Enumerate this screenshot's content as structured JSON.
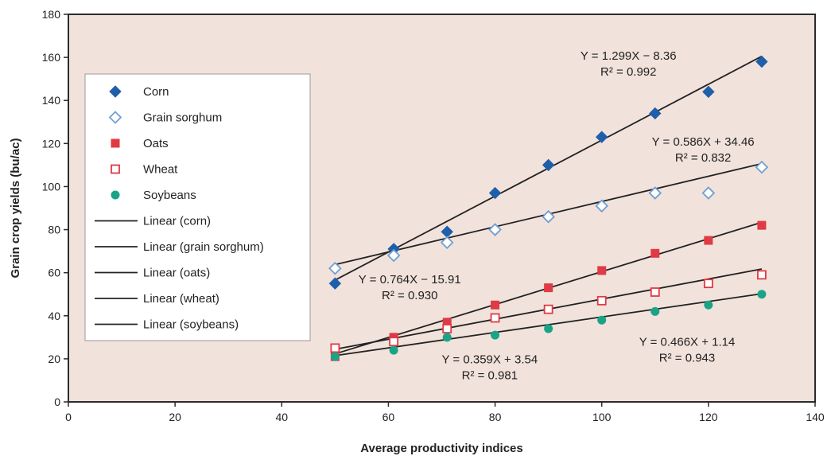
{
  "chart_data": {
    "type": "scatter",
    "xlabel": "Average productivity indices",
    "ylabel": "Grain crop yields (bu/ac)",
    "xlim": [
      0,
      140
    ],
    "ylim": [
      0,
      180
    ],
    "xticks": [
      0,
      20,
      40,
      60,
      80,
      100,
      120,
      140
    ],
    "yticks": [
      0,
      20,
      40,
      60,
      80,
      100,
      120,
      140,
      160,
      180
    ],
    "grid": false,
    "legend_position": "upper-left",
    "series": [
      {
        "name": "Corn",
        "marker": "filled-diamond",
        "color": "#1f5faa",
        "x": [
          50,
          61,
          71,
          80,
          90,
          100,
          110,
          120,
          130
        ],
        "y": [
          55,
          71,
          79,
          97,
          110,
          123,
          134,
          144,
          158
        ]
      },
      {
        "name": "Grain sorghum",
        "marker": "open-diamond",
        "color": "#6f9fd0",
        "x": [
          50,
          61,
          71,
          80,
          90,
          100,
          110,
          120,
          130
        ],
        "y": [
          62,
          68,
          74,
          80,
          86,
          91,
          97,
          97,
          109
        ]
      },
      {
        "name": "Oats",
        "marker": "filled-square",
        "color": "#e03a44",
        "x": [
          50,
          61,
          71,
          80,
          90,
          100,
          110,
          120,
          130
        ],
        "y": [
          21,
          30,
          37,
          45,
          53,
          61,
          69,
          75,
          82
        ]
      },
      {
        "name": "Wheat",
        "marker": "open-square",
        "color": "#e03a44",
        "x": [
          50,
          61,
          71,
          80,
          90,
          100,
          110,
          120,
          130
        ],
        "y": [
          25,
          28,
          34,
          39,
          43,
          47,
          51,
          55,
          59
        ]
      },
      {
        "name": "Soybeans",
        "marker": "filled-circle",
        "color": "#1aa487",
        "x": [
          50,
          61,
          71,
          80,
          90,
          100,
          110,
          120,
          130
        ],
        "y": [
          21,
          24,
          30,
          31,
          34,
          38,
          42,
          45,
          50
        ]
      }
    ],
    "trendlines": [
      {
        "name": "Linear (corn)",
        "slope": 1.299,
        "intercept": -8.36,
        "x_range": [
          50,
          130
        ]
      },
      {
        "name": "Linear (grain sorghum)",
        "slope": 0.586,
        "intercept": 34.46,
        "x_range": [
          50,
          130
        ]
      },
      {
        "name": "Linear (oats)",
        "slope": 0.764,
        "intercept": -15.91,
        "x_range": [
          50,
          130
        ]
      },
      {
        "name": "Linear (wheat)",
        "slope": 0.466,
        "intercept": 1.14,
        "x_range": [
          50,
          130
        ]
      },
      {
        "name": "Linear (soybeans)",
        "slope": 0.359,
        "intercept": 3.54,
        "x_range": [
          50,
          130
        ]
      }
    ],
    "annotations": [
      {
        "eq": "Y = 1.299X − 8.36",
        "r2": "R² = 0.992",
        "anchor": [
          105,
          159
        ]
      },
      {
        "eq": "Y = 0.586X + 34.46",
        "r2": "R² = 0.832",
        "anchor": [
          119,
          119
        ]
      },
      {
        "eq": "Y = 0.764X − 15.91",
        "r2": "R² = 0.930",
        "anchor": [
          64,
          55
        ]
      },
      {
        "eq": "Y = 0.466X + 1.14",
        "r2": "R² = 0.943",
        "anchor": [
          116,
          26
        ]
      },
      {
        "eq": "Y = 0.359X + 3.54",
        "r2": "R² = 0.981",
        "anchor": [
          79,
          18
        ]
      }
    ]
  },
  "colors": {
    "plot_background": "#f2e2dc",
    "border": "#2b2b2b",
    "trendline": "#222222"
  }
}
